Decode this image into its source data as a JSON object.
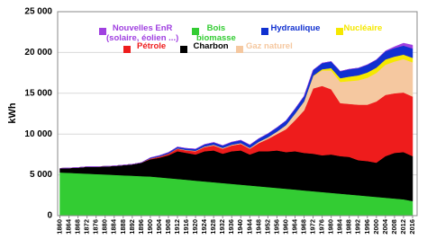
{
  "chart_data": {
    "type": "stacked_area",
    "y_label": "kWh",
    "x": [
      1860,
      1864,
      1868,
      1872,
      1876,
      1880,
      1884,
      1888,
      1892,
      1896,
      1900,
      1904,
      1908,
      1912,
      1916,
      1920,
      1924,
      1928,
      1932,
      1936,
      1940,
      1944,
      1948,
      1952,
      1956,
      1960,
      1964,
      1968,
      1972,
      1976,
      1980,
      1984,
      1988,
      1992,
      1996,
      2000,
      2004,
      2008,
      2012,
      2016
    ],
    "xlim": [
      1859,
      2018
    ],
    "xticks": [
      1860,
      1864,
      1868,
      1872,
      1876,
      1880,
      1884,
      1888,
      1892,
      1896,
      1900,
      1904,
      1908,
      1912,
      1916,
      1920,
      1924,
      1928,
      1932,
      1936,
      1940,
      1944,
      1948,
      1952,
      1956,
      1960,
      1964,
      1968,
      1972,
      1976,
      1980,
      1984,
      1988,
      1992,
      1996,
      2000,
      2004,
      2008,
      2012,
      2016
    ],
    "ylim": [
      0,
      25000
    ],
    "yticks": [
      0,
      {
        "value": 5000,
        "label": "5 000"
      },
      {
        "value": 10000,
        "label": "10 000"
      },
      {
        "value": 15000,
        "label": "15 000"
      },
      {
        "value": 20000,
        "label": "20 000"
      },
      {
        "value": 25000,
        "label": "25 000"
      }
    ],
    "grid": true,
    "series": [
      {
        "name": "Bois\nbiomasse",
        "color": "#33cc33",
        "values": [
          5300,
          5250,
          5200,
          5150,
          5100,
          5050,
          5000,
          4950,
          4900,
          4850,
          4800,
          4700,
          4600,
          4500,
          4400,
          4300,
          4200,
          4100,
          4000,
          3900,
          3800,
          3700,
          3600,
          3500,
          3400,
          3300,
          3200,
          3100,
          3000,
          2900,
          2800,
          2700,
          2600,
          2500,
          2400,
          2300,
          2200,
          2100,
          2000,
          1800
        ]
      },
      {
        "name": "Charbon",
        "color": "#000000",
        "values": [
          500,
          600,
          700,
          850,
          900,
          1000,
          1100,
          1250,
          1400,
          1650,
          2100,
          2400,
          2800,
          3400,
          3300,
          3200,
          3700,
          3900,
          3600,
          4000,
          4200,
          3800,
          4300,
          4400,
          4600,
          4500,
          4700,
          4600,
          4600,
          4500,
          4700,
          4600,
          4600,
          4300,
          4300,
          4200,
          5100,
          5600,
          5800,
          5500
        ]
      },
      {
        "name": "Pétrole",
        "color": "#ee1c1c",
        "values": [
          0,
          0,
          0,
          0,
          0,
          0,
          0,
          0,
          0,
          0,
          100,
          150,
          200,
          300,
          300,
          400,
          500,
          600,
          600,
          700,
          800,
          700,
          1000,
          1500,
          2000,
          2800,
          3800,
          5200,
          8000,
          8500,
          8000,
          6500,
          6500,
          6800,
          6900,
          7500,
          7500,
          7300,
          7300,
          7300
        ]
      },
      {
        "name": "Gaz naturel",
        "color": "#f5c8a0",
        "values": [
          0,
          0,
          0,
          0,
          0,
          0,
          0,
          0,
          0,
          0,
          0,
          0,
          0,
          50,
          50,
          50,
          80,
          100,
          100,
          100,
          100,
          100,
          150,
          200,
          300,
          500,
          800,
          1100,
          1500,
          1900,
          2300,
          2600,
          2800,
          3000,
          3300,
          3500,
          3700,
          3900,
          4100,
          4200
        ]
      },
      {
        "name": "Nucléaire",
        "color": "#f5e800",
        "values": [
          0,
          0,
          0,
          0,
          0,
          0,
          0,
          0,
          0,
          0,
          0,
          0,
          0,
          0,
          0,
          0,
          0,
          0,
          0,
          0,
          0,
          0,
          0,
          0,
          0,
          0,
          0,
          0,
          50,
          150,
          300,
          450,
          550,
          600,
          650,
          650,
          650,
          600,
          550,
          550
        ]
      },
      {
        "name": "Hydraulique",
        "color": "#1030d0",
        "values": [
          0,
          0,
          0,
          0,
          0,
          0,
          0,
          0,
          0,
          0,
          100,
          120,
          150,
          180,
          200,
          220,
          250,
          280,
          300,
          320,
          350,
          380,
          400,
          450,
          500,
          550,
          600,
          650,
          700,
          750,
          800,
          850,
          900,
          900,
          950,
          950,
          1000,
          1050,
          1100,
          1150
        ]
      },
      {
        "name": "Nouvelles EnR\n(solaire, éolien ...)",
        "color": "#a040e0",
        "values": [
          0,
          0,
          0,
          0,
          0,
          0,
          0,
          0,
          0,
          0,
          0,
          0,
          0,
          0,
          0,
          0,
          0,
          0,
          0,
          0,
          0,
          0,
          0,
          0,
          0,
          0,
          0,
          0,
          0,
          0,
          0,
          0,
          0,
          0,
          0,
          20,
          50,
          150,
          300,
          400
        ]
      }
    ]
  }
}
